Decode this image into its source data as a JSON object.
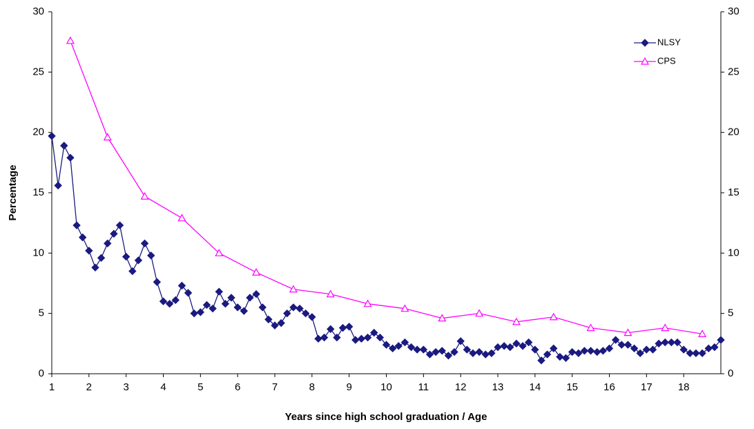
{
  "chart_data": {
    "type": "line",
    "x_label": "Years since high school graduation / Age",
    "y_label": "Percentage",
    "xlim": [
      1,
      19
    ],
    "xticks": [
      1,
      2,
      3,
      4,
      5,
      6,
      7,
      8,
      9,
      10,
      11,
      12,
      13,
      14,
      15,
      16,
      17,
      18
    ],
    "ylim": [
      0,
      30
    ],
    "yticks": [
      0,
      5,
      10,
      15,
      20,
      25,
      30
    ],
    "y2lim": [
      0,
      30
    ],
    "y2ticks": [
      0,
      5,
      10,
      15,
      20,
      25,
      30
    ],
    "legend": "upper right",
    "series": [
      {
        "name": "NLSY",
        "color": "#1a1a80",
        "marker": "diamond",
        "x": [
          1.0,
          1.17,
          1.33,
          1.5,
          1.67,
          1.83,
          2.0,
          2.17,
          2.33,
          2.5,
          2.67,
          2.83,
          3.0,
          3.17,
          3.33,
          3.5,
          3.67,
          3.83,
          4.0,
          4.17,
          4.33,
          4.5,
          4.67,
          4.83,
          5.0,
          5.17,
          5.33,
          5.5,
          5.67,
          5.83,
          6.0,
          6.17,
          6.33,
          6.5,
          6.67,
          6.83,
          7.0,
          7.17,
          7.33,
          7.5,
          7.67,
          7.83,
          8.0,
          8.17,
          8.33,
          8.5,
          8.67,
          8.83,
          9.0,
          9.17,
          9.33,
          9.5,
          9.67,
          9.83,
          10.0,
          10.17,
          10.33,
          10.5,
          10.67,
          10.83,
          11.0,
          11.17,
          11.33,
          11.5,
          11.67,
          11.83,
          12.0,
          12.17,
          12.33,
          12.5,
          12.67,
          12.83,
          13.0,
          13.17,
          13.33,
          13.5,
          13.67,
          13.83,
          14.0,
          14.17,
          14.33,
          14.5,
          14.67,
          14.83,
          15.0,
          15.17,
          15.33,
          15.5,
          15.67,
          15.83,
          16.0,
          16.17,
          16.33,
          16.5,
          16.67,
          16.83,
          17.0,
          17.17,
          17.33,
          17.5,
          17.67,
          17.83,
          18.0,
          18.17,
          18.33,
          18.5,
          18.67,
          18.83,
          19.0
        ],
        "values": [
          19.7,
          15.6,
          18.9,
          17.9,
          12.3,
          11.3,
          10.2,
          8.8,
          9.6,
          10.8,
          11.6,
          12.3,
          9.7,
          8.5,
          9.4,
          10.8,
          9.8,
          7.6,
          6.0,
          5.8,
          6.1,
          7.3,
          6.7,
          5.0,
          5.1,
          5.7,
          5.4,
          6.8,
          5.8,
          6.3,
          5.5,
          5.2,
          6.3,
          6.6,
          5.5,
          4.5,
          4.0,
          4.2,
          5.0,
          5.5,
          5.4,
          5.0,
          4.7,
          2.9,
          3.0,
          3.7,
          3.0,
          3.8,
          3.9,
          2.8,
          2.9,
          3.0,
          3.4,
          3.0,
          2.4,
          2.1,
          2.3,
          2.6,
          2.2,
          2.0,
          2.0,
          1.6,
          1.8,
          1.9,
          1.5,
          1.8,
          2.7,
          2.0,
          1.7,
          1.8,
          1.6,
          1.7,
          2.2,
          2.3,
          2.2,
          2.5,
          2.3,
          2.6,
          2.0,
          1.1,
          1.6,
          2.1,
          1.4,
          1.3,
          1.8,
          1.7,
          1.9,
          1.9,
          1.8,
          1.9,
          2.1,
          2.8,
          2.4,
          2.4,
          2.1,
          1.7,
          2.0,
          2.0,
          2.5,
          2.6,
          2.6,
          2.6,
          2.0,
          1.7,
          1.7,
          1.7,
          2.1,
          2.2,
          2.8
        ]
      },
      {
        "name": "CPS",
        "color": "#ff00ff",
        "marker": "triangle",
        "x": [
          1.5,
          2.5,
          3.5,
          4.5,
          5.5,
          6.5,
          7.5,
          8.5,
          9.5,
          10.5,
          11.5,
          12.5,
          13.5,
          14.5,
          15.5,
          16.5,
          17.5,
          18.5
        ],
        "values": [
          27.6,
          19.6,
          14.7,
          12.9,
          10.0,
          8.4,
          7.0,
          6.6,
          5.8,
          5.4,
          4.6,
          5.0,
          4.3,
          4.7,
          3.8,
          3.4,
          3.8,
          3.3
        ]
      }
    ]
  }
}
